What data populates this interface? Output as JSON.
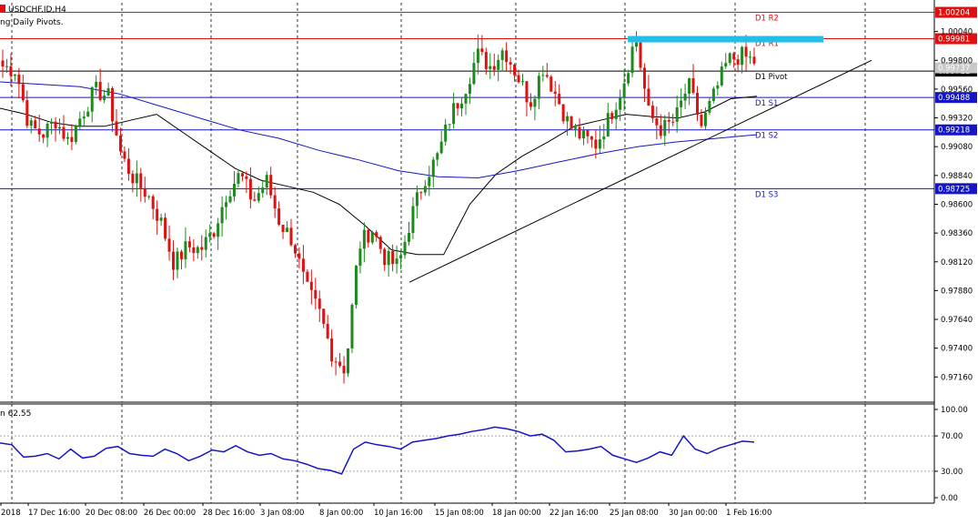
{
  "window": {
    "symbol_label": "USDCHF.ID,H4",
    "indicator_label": "ng Daily Pivots.",
    "rsi_label": "n 62.55"
  },
  "colors": {
    "bull": "#1d8a1d",
    "bear": "#e01010",
    "pivot_line": "#000000",
    "resist_line": "#e01010",
    "support_line": "#1515c8",
    "ma_fast": "#000000",
    "ma_slow": "#1515c8",
    "rsi": "#1515c8",
    "highlight": "#22bde8",
    "grid": "#000000"
  },
  "chart_data": [
    {
      "type": "candlestick",
      "title": "USDCHF.ID,H4",
      "ylim": [
        0.9695,
        1.0028
      ],
      "price_axis_ticks": [
        1.0004,
        0.998,
        0.9956,
        0.9932,
        0.9908,
        0.9884,
        0.986,
        0.9836,
        0.9812,
        0.9788,
        0.9764,
        0.974,
        0.9716
      ],
      "price_axis_labels": [
        "1.00040",
        "0.99800",
        "0.99560",
        "0.99320",
        "0.99080",
        "0.98840",
        "0.98600",
        "0.98360",
        "0.98120",
        "0.97880",
        "0.97640",
        "0.97400",
        "0.97160"
      ],
      "x_labels": [
        "2018",
        "17 Dec 16:00",
        "20 Dec 08:00",
        "26 Dec 00:00",
        "28 Dec 16:00",
        "3 Jan 08:00",
        "8 Jan 00:00",
        "10 Jan 16:00",
        "15 Jan 08:00",
        "18 Jan 00:00",
        "22 Jan 16:00",
        "25 Jan 08:00",
        "30 Jan 00:00",
        "1 Feb 16:00"
      ],
      "pivots": [
        {
          "name": "D1 R2",
          "value": 1.002,
          "price_label": "1.00204",
          "kind": "resistance"
        },
        {
          "name": "D1 R1",
          "value": 0.9998,
          "price_label": "0.99981",
          "kind": "resistance"
        },
        {
          "name": "D1 Pivot",
          "value": 0.9971,
          "price_label": "0.99711",
          "kind": "pivot"
        },
        {
          "name": "D1 S1",
          "value": 0.9949,
          "price_label": "0.99488",
          "kind": "support"
        },
        {
          "name": "D1 S2",
          "value": 0.9922,
          "price_label": "0.99218",
          "kind": "support"
        },
        {
          "name": "D1 S3",
          "value": 0.9873,
          "price_label": "0.98725",
          "kind": "support"
        }
      ],
      "current_price_label": "0.99737",
      "key_points": [
        0.9975,
        0.9972,
        0.9925,
        0.9918,
        0.993,
        0.9912,
        0.9935,
        0.9955,
        0.995,
        0.99,
        0.988,
        0.9868,
        0.9845,
        0.981,
        0.9825,
        0.9822,
        0.9838,
        0.987,
        0.9885,
        0.9862,
        0.988,
        0.9845,
        0.983,
        0.979,
        0.977,
        0.9735,
        0.9722,
        0.9825,
        0.984,
        0.9815,
        0.9808,
        0.985,
        0.9882,
        0.99,
        0.9935,
        0.9955,
        0.9985,
        0.9975,
        0.999,
        0.9968,
        0.9945,
        0.9975,
        0.995,
        0.9925,
        0.9915,
        0.991,
        0.9932,
        0.9958,
        1.0,
        0.9935,
        0.9922,
        0.993,
        0.996,
        0.9925,
        0.9952,
        0.998,
        0.9984,
        0.9979
      ],
      "ma_fast": [
        0.994,
        0.9935,
        0.9928,
        0.9925,
        0.9925,
        0.993,
        0.9935,
        0.992,
        0.9905,
        0.989,
        0.988,
        0.9875,
        0.987,
        0.986,
        0.9842,
        0.9822,
        0.9818,
        0.9818,
        0.986,
        0.9885,
        0.99,
        0.9912,
        0.9925,
        0.993,
        0.9935,
        0.9933,
        0.9932,
        0.9937,
        0.9948,
        0.995
      ],
      "ma_slow": [
        0.9962,
        0.996,
        0.9958,
        0.9952,
        0.9942,
        0.9932,
        0.9922,
        0.9915,
        0.9905,
        0.9897,
        0.9888,
        0.9883,
        0.9882,
        0.9888,
        0.9895,
        0.9902,
        0.9908,
        0.9912,
        0.9915,
        0.9918
      ],
      "trendline": {
        "start": 0.9795,
        "end": 0.998
      }
    },
    {
      "type": "line",
      "title": "RSI",
      "ylim": [
        0,
        100
      ],
      "y_ticks": [
        100.0,
        70.0,
        30.0,
        0.0
      ],
      "y_tick_labels": [
        "100.00",
        "70.00",
        "30.00",
        "0.00"
      ],
      "series": [
        {
          "values": [
            62,
            60,
            46,
            47,
            50,
            44,
            55,
            45,
            47,
            56,
            58,
            50,
            48,
            47,
            55,
            50,
            42,
            47,
            54,
            52,
            59,
            52,
            48,
            50,
            44,
            42,
            38,
            33,
            31,
            27,
            55,
            63,
            60,
            58,
            55,
            63,
            65,
            67,
            70,
            72,
            75,
            77,
            80,
            78,
            75,
            70,
            72,
            65,
            52,
            53,
            55,
            58,
            48,
            44,
            40,
            45,
            52,
            48,
            70,
            55,
            50,
            56,
            60,
            64,
            63
          ]
        }
      ]
    }
  ]
}
